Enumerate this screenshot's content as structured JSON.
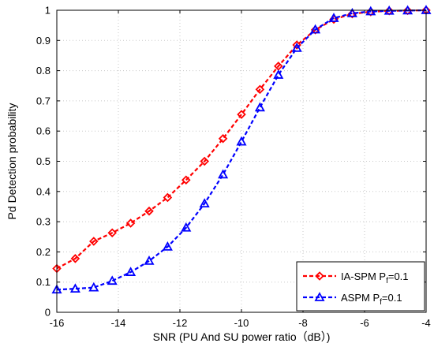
{
  "chart_data": {
    "type": "line",
    "xlabel": "SNR (PU And SU power ratio（dB）)",
    "ylabel": "Pd Detection probability",
    "xlim": [
      -16,
      -4
    ],
    "ylim": [
      0,
      1
    ],
    "x_ticks": [
      "-16",
      "-14",
      "-12",
      "-10",
      "-8",
      "-6",
      "-4"
    ],
    "y_ticks": [
      "0",
      "0.1",
      "0.2",
      "0.3",
      "0.4",
      "0.5",
      "0.6",
      "0.7",
      "0.8",
      "0.9",
      "1"
    ],
    "grid": true,
    "legend_position": "bottom-right",
    "x": [
      -16,
      -15.4,
      -14.8,
      -14.2,
      -13.6,
      -13,
      -12.4,
      -11.8,
      -11.2,
      -10.6,
      -10,
      -9.4,
      -8.8,
      -8.2,
      -7.6,
      -7,
      -6.4,
      -5.8,
      -5.2,
      -4.6,
      -4
    ],
    "series": [
      {
        "name": "IA-SPM P",
        "name_sub": "f",
        "name_suffix": "=0.1",
        "color": "#ff0000",
        "marker": "diamond",
        "values": [
          0.145,
          0.178,
          0.235,
          0.263,
          0.295,
          0.335,
          0.38,
          0.438,
          0.5,
          0.575,
          0.655,
          0.738,
          0.815,
          0.885,
          0.935,
          0.97,
          0.988,
          0.995,
          0.998,
          0.999,
          1.0
        ]
      },
      {
        "name": "ASPM P",
        "name_sub": "f",
        "name_suffix": "=0.1",
        "color": "#0000ff",
        "marker": "triangle",
        "values": [
          0.075,
          0.078,
          0.082,
          0.104,
          0.133,
          0.17,
          0.217,
          0.28,
          0.36,
          0.456,
          0.565,
          0.678,
          0.786,
          0.875,
          0.936,
          0.974,
          0.99,
          0.996,
          0.998,
          0.999,
          1.0
        ]
      }
    ]
  }
}
